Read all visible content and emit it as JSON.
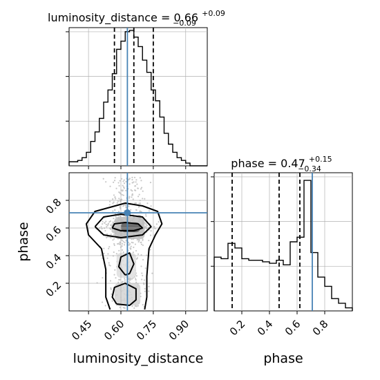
{
  "chart_data": [
    {
      "type": "histogram",
      "panel": "luminosity_distance-marginal",
      "title": {
        "text": "luminosity_distance = 0.66",
        "sup": "+0.09",
        "sub": "−0.09"
      },
      "xlim": [
        0.36,
        1.0
      ],
      "bin_edges": [
        0.36,
        0.38,
        0.4,
        0.42,
        0.44,
        0.46,
        0.48,
        0.5,
        0.52,
        0.54,
        0.56,
        0.58,
        0.6,
        0.62,
        0.64,
        0.66,
        0.68,
        0.7,
        0.72,
        0.74,
        0.76,
        0.78,
        0.8,
        0.82,
        0.84,
        0.86,
        0.88,
        0.9,
        0.92,
        0.94,
        0.96,
        0.98,
        1.0
      ],
      "counts": [
        0.3,
        0.3,
        0.4,
        0.6,
        1.0,
        1.8,
        2.5,
        3.5,
        4.7,
        5.6,
        6.8,
        8.6,
        9.2,
        9.9,
        10.0,
        9.5,
        8.8,
        7.8,
        6.9,
        5.6,
        4.8,
        3.6,
        2.4,
        1.6,
        1.0,
        0.6,
        0.4,
        0.2,
        0.0,
        0.0,
        0.0,
        0.0
      ],
      "quantiles": [
        0.57,
        0.66,
        0.75
      ],
      "truth": 0.63,
      "grid": true
    },
    {
      "type": "contour",
      "panel": "joint",
      "xlabel": "luminosity_distance",
      "ylabel": "phase",
      "xlim": [
        0.36,
        1.0
      ],
      "ylim": [
        0.0,
        1.0
      ],
      "xticks": [
        "0.45",
        "0.60",
        "0.75",
        "0.90"
      ],
      "xtick_values": [
        0.45,
        0.6,
        0.75,
        0.9
      ],
      "yticks": [
        "0.2",
        "0.4",
        "0.6",
        "0.8"
      ],
      "ytick_values": [
        0.2,
        0.4,
        0.6,
        0.8
      ],
      "truth": [
        0.63,
        0.71
      ],
      "levels": [
        {
          "name": "outer",
          "paths": [
            [
              [
                0.55,
                0.01
              ],
              [
                0.53,
                0.1
              ],
              [
                0.53,
                0.3
              ],
              [
                0.51,
                0.45
              ],
              [
                0.45,
                0.55
              ],
              [
                0.44,
                0.63
              ],
              [
                0.48,
                0.72
              ],
              [
                0.55,
                0.75
              ],
              [
                0.62,
                0.78
              ],
              [
                0.7,
                0.76
              ],
              [
                0.77,
                0.72
              ],
              [
                0.79,
                0.63
              ],
              [
                0.76,
                0.55
              ],
              [
                0.73,
                0.45
              ],
              [
                0.72,
                0.25
              ],
              [
                0.72,
                0.1
              ],
              [
                0.71,
                0.01
              ]
            ]
          ]
        },
        {
          "name": "middle",
          "paths": [
            [
              [
                0.48,
                0.61
              ],
              [
                0.52,
                0.55
              ],
              [
                0.6,
                0.53
              ],
              [
                0.7,
                0.55
              ],
              [
                0.74,
                0.61
              ],
              [
                0.7,
                0.68
              ],
              [
                0.6,
                0.7
              ],
              [
                0.52,
                0.68
              ],
              [
                0.48,
                0.61
              ]
            ],
            [
              [
                0.58,
                0.05
              ],
              [
                0.56,
                0.1
              ],
              [
                0.57,
                0.17
              ],
              [
                0.62,
                0.2
              ],
              [
                0.67,
                0.16
              ],
              [
                0.67,
                0.08
              ],
              [
                0.64,
                0.04
              ],
              [
                0.58,
                0.05
              ]
            ],
            [
              [
                0.62,
                0.26
              ],
              [
                0.59,
                0.32
              ],
              [
                0.6,
                0.39
              ],
              [
                0.64,
                0.42
              ],
              [
                0.66,
                0.34
              ],
              [
                0.64,
                0.27
              ],
              [
                0.62,
                0.26
              ]
            ]
          ]
        },
        {
          "name": "inner",
          "paths": [
            [
              [
                0.56,
                0.6
              ],
              [
                0.6,
                0.58
              ],
              [
                0.66,
                0.58
              ],
              [
                0.7,
                0.6
              ],
              [
                0.68,
                0.63
              ],
              [
                0.62,
                0.64
              ],
              [
                0.57,
                0.63
              ],
              [
                0.56,
                0.6
              ]
            ]
          ]
        }
      ],
      "density_shades": [
        {
          "x0": 0.57,
          "x1": 0.71,
          "y0": 0.52,
          "y1": 0.68,
          "shade": "#bdbdbd"
        },
        {
          "x0": 0.6,
          "x1": 0.69,
          "y0": 0.57,
          "y1": 0.64,
          "shade": "#5c5c5c"
        },
        {
          "x0": 0.57,
          "x1": 0.69,
          "y0": 0.04,
          "y1": 0.2,
          "shade": "#d4d4d4"
        },
        {
          "x0": 0.58,
          "x1": 0.67,
          "y0": 0.24,
          "y1": 0.42,
          "shade": "#dedede"
        }
      ],
      "grid": true
    },
    {
      "type": "histogram",
      "panel": "phase-marginal",
      "title": {
        "text": "phase = 0.47",
        "sup": "+0.15",
        "sub": "−0.34"
      },
      "xlabel": "phase",
      "xlim": [
        0.0,
        1.0
      ],
      "xticks": [
        "0.2",
        "0.4",
        "0.6",
        "0.8"
      ],
      "xtick_values": [
        0.2,
        0.4,
        0.6,
        0.8
      ],
      "bin_edges": [
        0.0,
        0.05,
        0.1,
        0.15,
        0.2,
        0.25,
        0.3,
        0.35,
        0.4,
        0.45,
        0.5,
        0.55,
        0.6,
        0.65,
        0.7,
        0.75,
        0.8,
        0.85,
        0.9,
        0.95,
        1.0
      ],
      "counts": [
        3.5,
        3.4,
        4.4,
        4.1,
        3.4,
        3.3,
        3.3,
        3.2,
        3.1,
        3.3,
        3.0,
        4.5,
        4.8,
        8.5,
        3.8,
        2.2,
        1.6,
        0.8,
        0.5,
        0.2
      ],
      "quantiles": [
        0.13,
        0.47,
        0.62
      ],
      "truth": 0.71,
      "grid": true
    }
  ],
  "colors": {
    "truth": "#4682b4",
    "line": "#000000",
    "grid": "#b0b0b0",
    "scatter": "#c8c8c8"
  }
}
